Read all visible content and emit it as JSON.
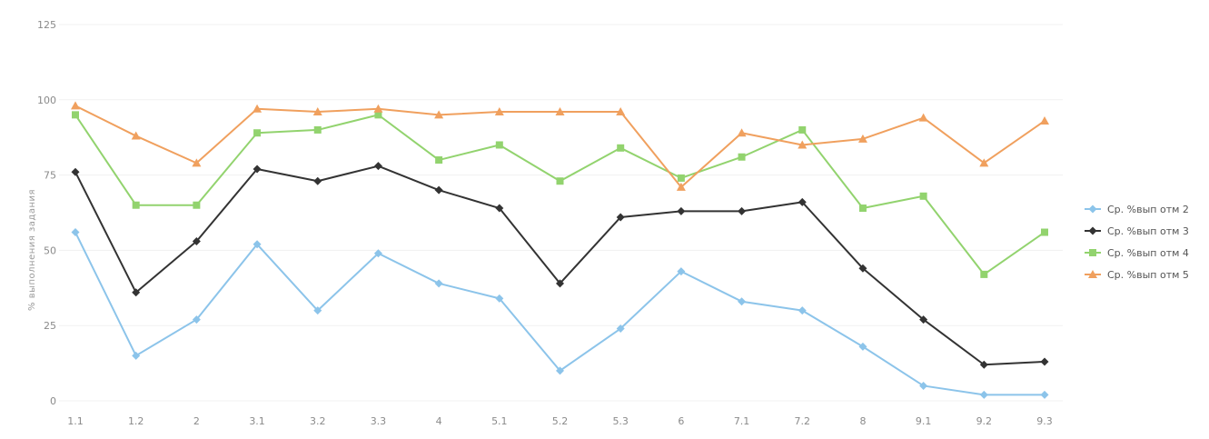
{
  "chart_data": {
    "type": "line",
    "title": "",
    "xlabel": "",
    "ylabel": "% выполнения задания",
    "ylim": [
      0,
      125
    ],
    "yticks": [
      0,
      25,
      50,
      75,
      100,
      125
    ],
    "grid": true,
    "legend_position": "right",
    "categories": [
      "1.1",
      "1.2",
      "2",
      "3.1",
      "3.2",
      "3.3",
      "4",
      "5.1",
      "5.2",
      "5.3",
      "6",
      "7.1",
      "7.2",
      "8",
      "9.1",
      "9.2",
      "9.3"
    ],
    "series": [
      {
        "name": "Ср. %вып отм 2",
        "color": "#8cc4ea",
        "marker": "diamond",
        "values": [
          56,
          15,
          27,
          52,
          30,
          49,
          39,
          34,
          10,
          24,
          43,
          33,
          30,
          18,
          5,
          2,
          2
        ]
      },
      {
        "name": "Ср. %вып отм 3",
        "color": "#333333",
        "marker": "diamond",
        "values": [
          76,
          36,
          53,
          77,
          73,
          78,
          70,
          64,
          39,
          61,
          63,
          63,
          66,
          44,
          27,
          12,
          13
        ]
      },
      {
        "name": "Ср. %вып отм 4",
        "color": "#92d36e",
        "marker": "square",
        "values": [
          95,
          65,
          65,
          89,
          90,
          95,
          80,
          85,
          73,
          84,
          74,
          81,
          90,
          64,
          68,
          42,
          56
        ]
      },
      {
        "name": "Ср. %вып отм 5",
        "color": "#f0a05e",
        "marker": "triangle",
        "values": [
          98,
          88,
          79,
          97,
          96,
          97,
          95,
          96,
          96,
          96,
          71,
          89,
          85,
          87,
          94,
          79,
          93
        ]
      }
    ]
  }
}
